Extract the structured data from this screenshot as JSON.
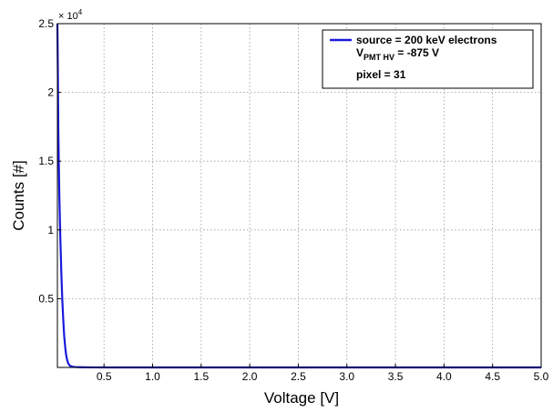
{
  "chart_data": {
    "type": "line",
    "xlabel": "Voltage [V]",
    "ylabel": "Counts [#]",
    "xlim": [
      0.02,
      5.0
    ],
    "ylim": [
      0,
      25000
    ],
    "y_scale_label": "× 10",
    "y_scale_exponent": "4",
    "x_ticks": [
      {
        "value": 0.5,
        "label": "0.5"
      },
      {
        "value": 1.0,
        "label": "1.0"
      },
      {
        "value": 1.5,
        "label": "1.5"
      },
      {
        "value": 2.0,
        "label": "2.0"
      },
      {
        "value": 2.5,
        "label": "2.5"
      },
      {
        "value": 3.0,
        "label": "3.0"
      },
      {
        "value": 3.5,
        "label": "3.5"
      },
      {
        "value": 4.0,
        "label": "4.0"
      },
      {
        "value": 4.5,
        "label": "4.5"
      },
      {
        "value": 5.0,
        "label": "5.0"
      }
    ],
    "y_ticks": [
      {
        "value": 5000,
        "label": "0.5"
      },
      {
        "value": 10000,
        "label": "1"
      },
      {
        "value": 15000,
        "label": "1.5"
      },
      {
        "value": 20000,
        "label": "2"
      },
      {
        "value": 25000,
        "label": "2.5"
      }
    ],
    "grid": true,
    "legend_position": "top-right",
    "legend": {
      "series_label": "source = 200 keV electrons",
      "hv_main": "V",
      "hv_sub": "PMT HV",
      "hv_value": " = -875 V",
      "pixel_label": "pixel = 31"
    },
    "series": [
      {
        "name": "source = 200 keV electrons",
        "color": "#1a1adc",
        "x": [
          0.02,
          0.025,
          0.03,
          0.04,
          0.05,
          0.06,
          0.07,
          0.08,
          0.09,
          0.1,
          0.11,
          0.12,
          0.13,
          0.14,
          0.15,
          0.17,
          0.2,
          0.25,
          0.3,
          0.4,
          0.6,
          1.0,
          2.0,
          3.0,
          4.0,
          5.0
        ],
        "y": [
          25000,
          21500,
          17000,
          12500,
          9500,
          7000,
          5000,
          3500,
          2300,
          1500,
          900,
          550,
          330,
          200,
          120,
          60,
          30,
          15,
          8,
          4,
          2,
          1,
          0,
          0,
          0,
          0
        ]
      }
    ]
  }
}
